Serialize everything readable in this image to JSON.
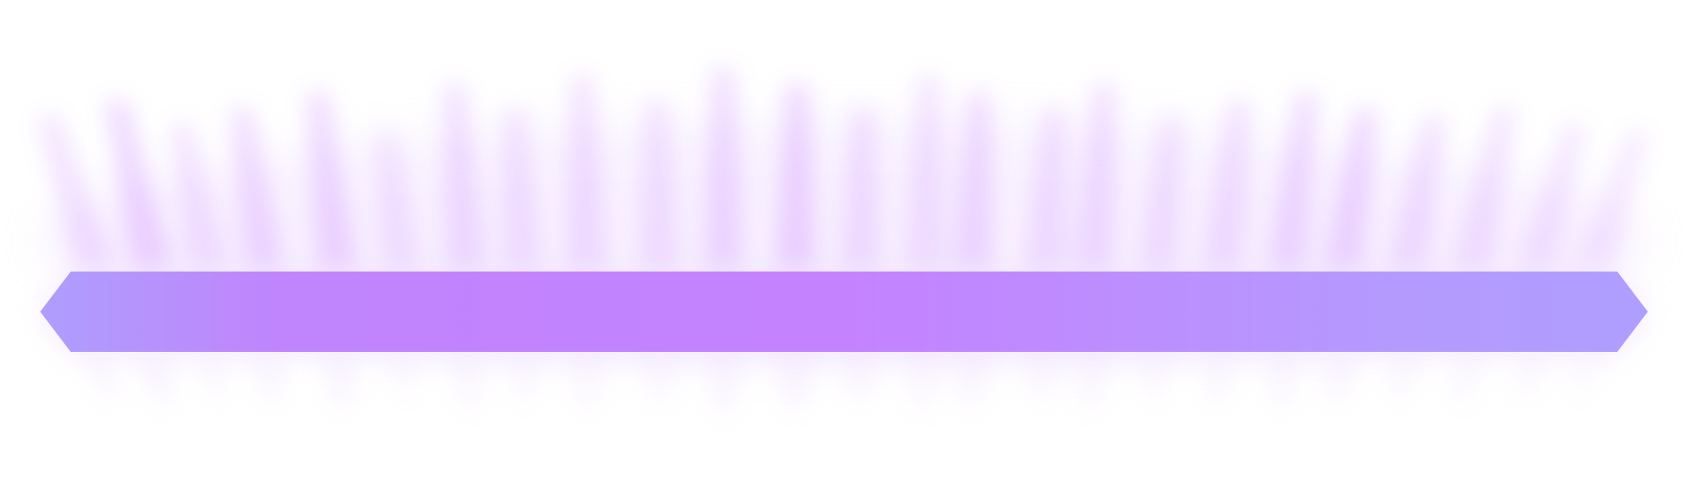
{
  "banner": {
    "colors": {
      "edge": "#ae9efd",
      "mid": "#c084fc",
      "center": "#c482ff",
      "glow": "#c77dff",
      "glow_soft": "#ddb8ff",
      "background": "#ffffff"
    },
    "shape": "elongated-hexagon",
    "effect": "radiating-glow-streaks"
  }
}
